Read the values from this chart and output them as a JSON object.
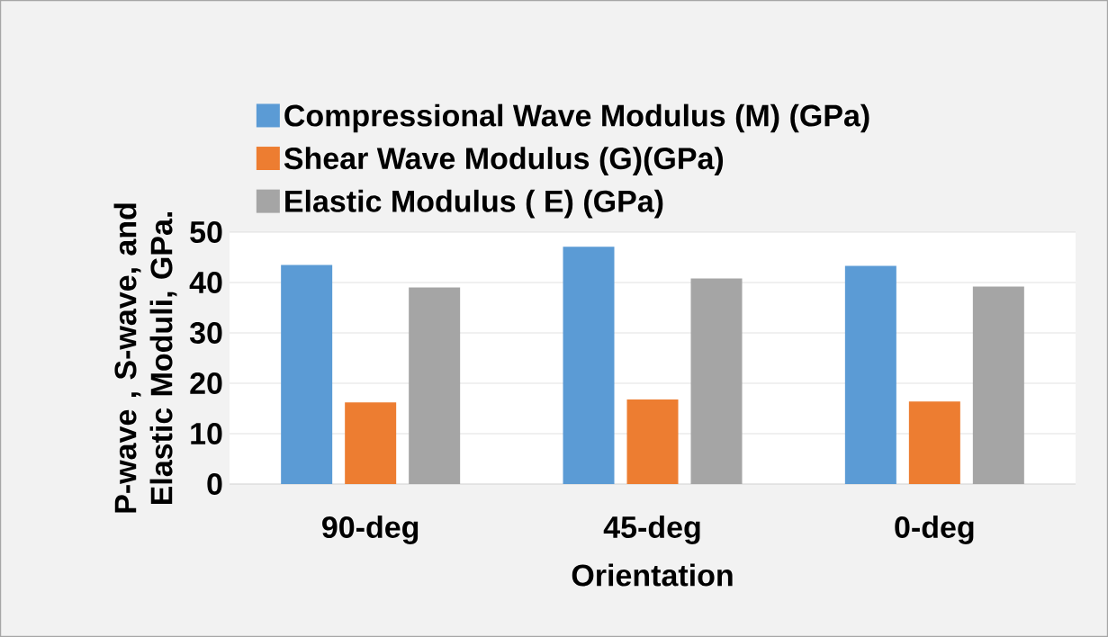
{
  "chart_data": {
    "type": "bar",
    "xlabel": "Orientation",
    "ylabel": "P-wave , S-wave, and Elastic Moduli, GPa.",
    "categories": [
      "90-deg",
      "45-deg",
      "0-deg"
    ],
    "series": [
      {
        "name": "Compressional Wave Modulus (M) (GPa)",
        "color": "#5b9bd5",
        "values": [
          43.5,
          47.1,
          43.3
        ]
      },
      {
        "name": "Shear Wave Modulus (G)(GPa)",
        "color": "#ed7d31",
        "values": [
          16.2,
          16.8,
          16.4
        ]
      },
      {
        "name": "Elastic Modulus ( E) (GPa)",
        "color": "#a5a5a5",
        "values": [
          39.0,
          40.8,
          39.2
        ]
      }
    ],
    "ylim": [
      0,
      50
    ],
    "yticks": [
      0,
      10,
      20,
      30,
      40,
      50
    ],
    "grid": "y",
    "legend": "top"
  }
}
